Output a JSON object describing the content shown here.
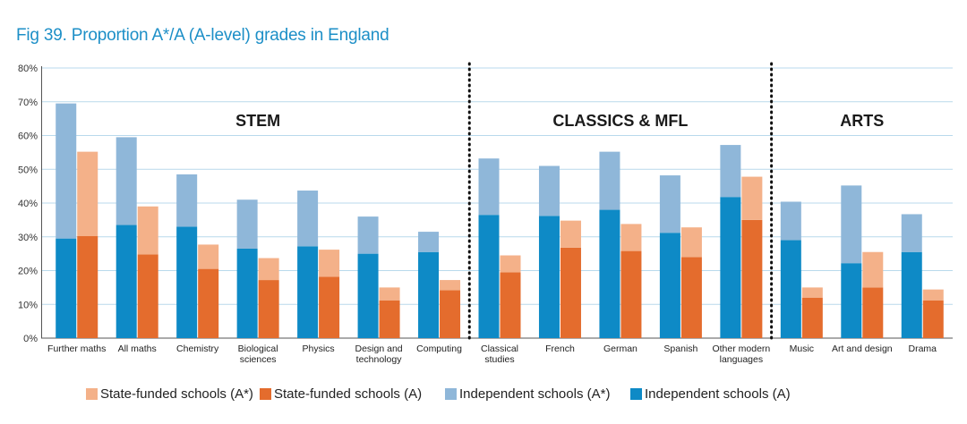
{
  "title": "Fig 39. Proportion A*/A (A-level) grades in England",
  "colors": {
    "independent_a": "#0e8ac6",
    "independent_astar": "#8fb7d9",
    "state_a": "#e46c2d",
    "state_astar": "#f4b189",
    "grid": "#b9d9ec",
    "divider": "#111111"
  },
  "legend": [
    {
      "label": "State-funded schools (A*)",
      "color": "#f4b189"
    },
    {
      "label": "State-funded schools (A)",
      "color": "#e46c2d"
    },
    {
      "label": "Independent schools (A*)",
      "color": "#8fb7d9"
    },
    {
      "label": "Independent schools (A)",
      "color": "#0e8ac6"
    }
  ],
  "chart_data": {
    "type": "bar",
    "stacked": true,
    "title": "Fig 39. Proportion A*/A (A-level) grades in England",
    "ylim": [
      0,
      80
    ],
    "yticks": [
      "0%",
      "10%",
      "20%",
      "30%",
      "40%",
      "50%",
      "60%",
      "70%",
      "80%"
    ],
    "categories": [
      "Further maths",
      "All maths",
      "Chemistry",
      "Biological sciences",
      "Physics",
      "Design and technology",
      "Computing",
      "Classical studies",
      "French",
      "German",
      "Spanish",
      "Other modern languages",
      "Music",
      "Art and design",
      "Drama"
    ],
    "groups": [
      {
        "label": "STEM",
        "start": 0,
        "end": 6
      },
      {
        "label": "CLASSICS & MFL",
        "start": 7,
        "end": 11
      },
      {
        "label": "ARTS",
        "start": 12,
        "end": 14
      }
    ],
    "series": [
      {
        "name": "Independent schools (A)",
        "stack": "independent",
        "color": "#0e8ac6",
        "values": [
          29.5,
          33.5,
          33,
          26.5,
          27.2,
          25,
          25.5,
          36.5,
          36.2,
          38,
          31.2,
          41.8,
          29,
          22.2,
          25.5
        ]
      },
      {
        "name": "Independent schools (A*)",
        "stack": "independent",
        "color": "#8fb7d9",
        "values": [
          40,
          26,
          15.5,
          14.5,
          16.5,
          11,
          6,
          16.7,
          14.8,
          17.2,
          17,
          15.4,
          11.4,
          23,
          11.2
        ]
      },
      {
        "name": "State-funded schools (A)",
        "stack": "state",
        "color": "#e46c2d",
        "values": [
          30.2,
          24.8,
          20.5,
          17.2,
          18.2,
          11.2,
          14.2,
          19.5,
          26.8,
          25.8,
          24,
          35,
          12,
          15,
          11.2
        ]
      },
      {
        "name": "State-funded schools (A*)",
        "stack": "state",
        "color": "#f4b189",
        "values": [
          25,
          14.2,
          7.2,
          6.5,
          8,
          3.8,
          3,
          5,
          8,
          8,
          8.8,
          12.8,
          3,
          10.5,
          3.2
        ]
      }
    ],
    "grid": true,
    "legend_position": "bottom"
  }
}
